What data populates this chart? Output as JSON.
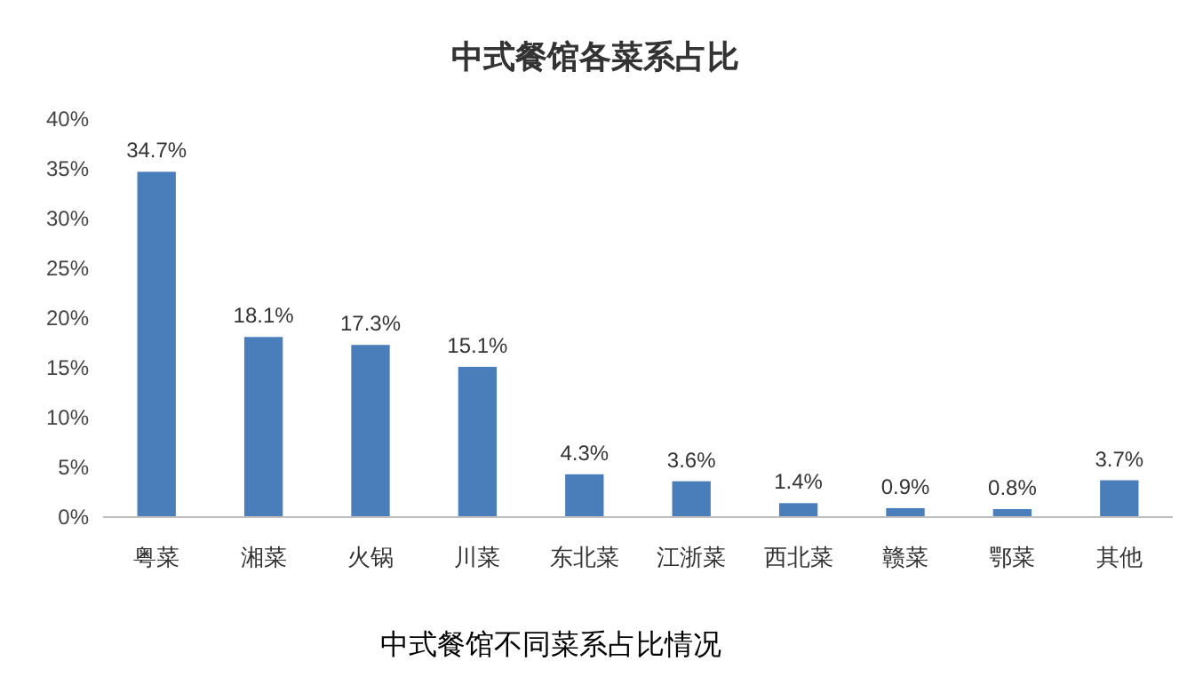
{
  "chart_data": {
    "type": "bar",
    "title": "中式餐馆各菜系占比",
    "categories": [
      "粤菜",
      "湘菜",
      "火锅",
      "川菜",
      "东北菜",
      "江浙菜",
      "西北菜",
      "赣菜",
      "鄂菜",
      "其他"
    ],
    "values": [
      34.7,
      18.1,
      17.3,
      15.1,
      4.3,
      3.6,
      1.4,
      0.9,
      0.8,
      3.7
    ],
    "value_labels": [
      "34.7%",
      "18.1%",
      "17.3%",
      "15.1%",
      "4.3%",
      "3.6%",
      "1.4%",
      "0.9%",
      "0.8%",
      "3.7%"
    ],
    "color": "#4a7ebb",
    "ylim": [
      0,
      40
    ],
    "yticks": [
      {
        "value": 0,
        "label": "0%"
      },
      {
        "value": 5,
        "label": "5%"
      },
      {
        "value": 10,
        "label": "10%"
      },
      {
        "value": 15,
        "label": "15%"
      },
      {
        "value": 20,
        "label": "20%"
      },
      {
        "value": 25,
        "label": "25%"
      },
      {
        "value": 30,
        "label": "30%"
      },
      {
        "value": 35,
        "label": "35%"
      },
      {
        "value": 40,
        "label": "40%"
      }
    ],
    "annotations": [
      "中式餐馆不同菜系占比情况"
    ]
  }
}
